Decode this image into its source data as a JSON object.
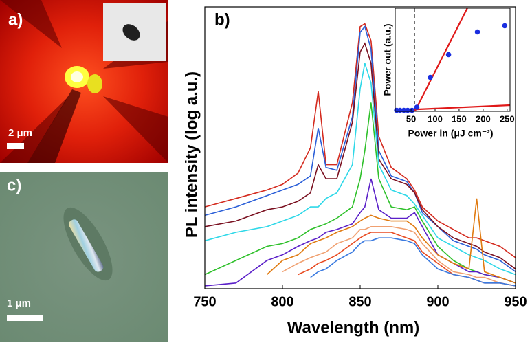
{
  "panels": {
    "a": {
      "label": "a)",
      "scale_bar": "2 μm"
    },
    "c": {
      "label": "c)",
      "scale_bar": "1 μm"
    }
  },
  "chart_data": [
    {
      "type": "line",
      "panel_label": "b)",
      "x_label": "Wavelength (nm)",
      "y_label": "PL intensity (log a.u.)",
      "x": [
        750,
        770,
        790,
        800,
        810,
        818,
        823,
        828,
        835,
        845,
        850,
        853,
        857,
        862,
        870,
        880,
        885,
        890,
        900,
        910,
        920,
        925,
        930,
        940,
        950
      ],
      "xlim": [
        750,
        950
      ],
      "xticks": [
        750,
        800,
        850,
        900,
        950
      ],
      "ylim": [
        0,
        100
      ],
      "series": [
        {
          "color": "#d42a1e",
          "values": [
            29,
            32,
            35,
            37,
            41,
            50,
            70,
            44,
            44,
            66,
            93,
            94,
            88,
            54,
            43,
            39,
            35,
            29,
            24,
            21,
            18,
            18,
            17,
            15,
            11
          ]
        },
        {
          "color": "#2b5fd8",
          "values": [
            26,
            29,
            33,
            35,
            37,
            40,
            57,
            43,
            42,
            61,
            91,
            93,
            85,
            49,
            40,
            38,
            34,
            27,
            22,
            17,
            15,
            14,
            12,
            10,
            6
          ]
        },
        {
          "color": "#7a1020",
          "values": [
            22,
            24,
            28,
            29,
            31,
            34,
            44,
            39,
            39,
            59,
            84,
            87,
            80,
            46,
            39,
            37,
            34,
            28,
            22,
            18,
            16,
            15,
            13,
            11,
            7
          ]
        },
        {
          "color": "#2ed8e8",
          "values": [
            17,
            20,
            22,
            24,
            26,
            29,
            29,
            32,
            34,
            44,
            71,
            80,
            73,
            44,
            35,
            33,
            30,
            26,
            18,
            15,
            12,
            11,
            10,
            7,
            5
          ]
        },
        {
          "color": "#2ec02a",
          "values": [
            5,
            10,
            15,
            16,
            18,
            21,
            22,
            23,
            25,
            29,
            39,
            49,
            66,
            39,
            29,
            28,
            29,
            24,
            15,
            10,
            7,
            6,
            5,
            4,
            2
          ]
        },
        {
          "color": "#5a1fc8",
          "values": [
            1,
            2,
            10,
            12,
            15,
            17,
            18,
            20,
            21,
            23,
            27,
            29,
            39,
            28,
            25,
            25,
            27,
            22,
            12,
            9,
            6,
            6,
            5,
            4,
            2
          ]
        },
        {
          "color": "#e07a10",
          "values": [
            null,
            null,
            5,
            10,
            12,
            16,
            17,
            18,
            20,
            22,
            24,
            25,
            26,
            25,
            24,
            24,
            22,
            18,
            12,
            9,
            7,
            32,
            6,
            4,
            2
          ]
        },
        {
          "color": "#f0a070",
          "values": [
            null,
            null,
            null,
            6,
            9,
            11,
            12,
            13,
            16,
            18,
            21,
            21,
            22,
            22,
            22,
            21,
            20,
            16,
            10,
            6,
            5,
            4,
            4,
            2,
            1
          ]
        },
        {
          "color": "#e84a20",
          "values": [
            null,
            null,
            null,
            null,
            5,
            7,
            9,
            10,
            12,
            16,
            18,
            19,
            20,
            20,
            20,
            18,
            17,
            13,
            9,
            5,
            4,
            3,
            2,
            2,
            1
          ]
        },
        {
          "color": "#3a7ae0",
          "values": [
            null,
            null,
            null,
            null,
            null,
            4,
            6,
            7,
            10,
            13,
            16,
            17,
            17,
            18,
            18,
            17,
            16,
            12,
            7,
            5,
            4,
            3,
            2,
            2,
            1
          ]
        }
      ]
    },
    {
      "type": "scatter",
      "x_label": "Power in (μJ cm⁻²)",
      "y_label": "Power out (a.u.)",
      "x": [
        20,
        27,
        35,
        43,
        52,
        62,
        90,
        128,
        188,
        245
      ],
      "values": [
        1,
        1,
        1,
        1,
        1,
        4,
        33,
        55,
        77,
        83
      ],
      "color": "#1a2ee0",
      "xlim": [
        17,
        256
      ],
      "xticks": [
        50,
        100,
        150,
        200,
        250
      ],
      "ylim": [
        0,
        100
      ],
      "threshold": 57,
      "fit_lines": [
        {
          "color": "#e01818",
          "x": [
            58,
            167
          ],
          "values": [
            0,
            100
          ]
        },
        {
          "color": "#e01818",
          "x": [
            17,
            256
          ],
          "values": [
            1,
            6
          ]
        }
      ]
    }
  ]
}
